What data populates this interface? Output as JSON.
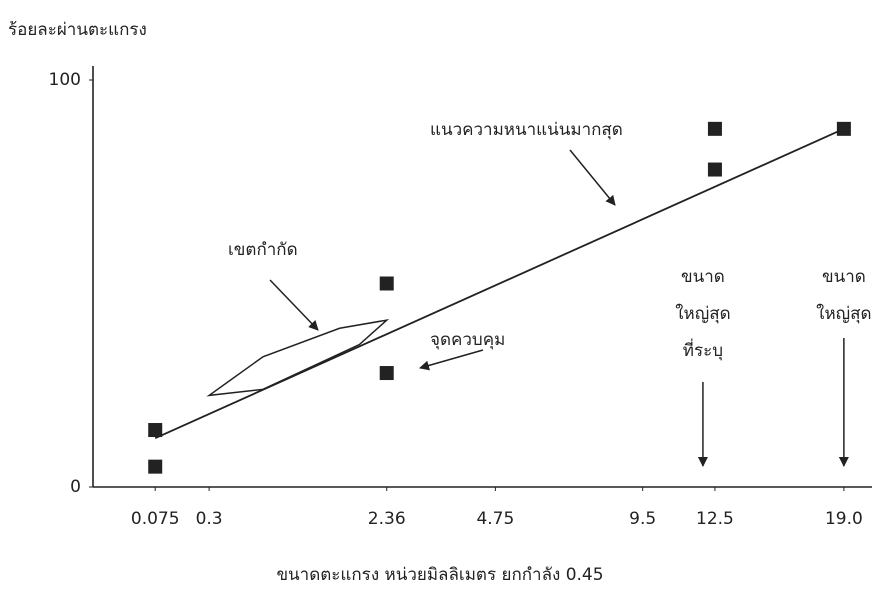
{
  "chart_data": {
    "type": "scatter",
    "y_label": "ร้อยละผ่านตะแกรง",
    "x_label": "ขนาดตะแกรง หน่วยมิลลิเมตร ยกกำลัง 0.45",
    "x_scale_exponent": 0.45,
    "xlim": [
      0,
      20.5
    ],
    "ylim": [
      0,
      100
    ],
    "xticks": [
      0.075,
      0.3,
      2.36,
      4.75,
      9.5,
      12.5,
      {
        "value": 19,
        "label": "19.0"
      }
    ],
    "yticks": [
      0,
      100
    ],
    "grid": false,
    "series": [
      {
        "type": "scatter",
        "color": "#222222",
        "x": [
          0.075,
          0.075,
          2.36,
          2.36,
          12.5,
          12.5,
          19
        ],
        "values": [
          14,
          5,
          50,
          28,
          88,
          78,
          88
        ]
      },
      {
        "type": "line",
        "color": "#222222",
        "x": [
          0.075,
          19
        ],
        "values": [
          12,
          88
        ]
      },
      {
        "type": "area",
        "color": "#222222",
        "x": [
          0.3,
          0.7,
          1.6,
          2.36,
          1.9,
          0.7
        ],
        "values": [
          22.5,
          32,
          39,
          41,
          35,
          24
        ]
      }
    ],
    "annotations": [
      {
        "lines": [
          "แนวความหนาแน่นมากสุด"
        ]
      },
      {
        "lines": [
          "เขตกำกัด"
        ]
      },
      {
        "lines": [
          "จุดควบคุม"
        ]
      },
      {
        "lines": [
          "ขนาด",
          "ใหญ่สุด",
          "ที่ระบุ"
        ]
      },
      {
        "lines": [
          "ขนาด",
          "ใหญ่สุด"
        ]
      }
    ]
  }
}
